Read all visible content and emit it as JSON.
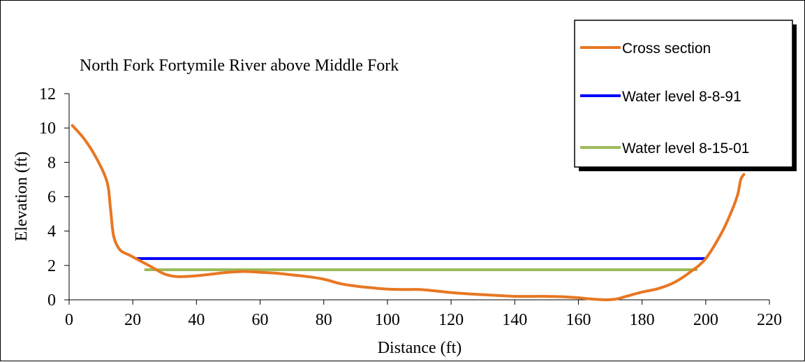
{
  "chart_data": {
    "type": "line",
    "title": "North Fork Fortymile River above Middle Fork",
    "xlabel": "Distance (ft)",
    "ylabel": "Elevation (ft)",
    "xlim": [
      0,
      220
    ],
    "ylim": [
      0,
      12
    ],
    "x_ticks": [
      0,
      20,
      40,
      60,
      80,
      100,
      120,
      140,
      160,
      180,
      200,
      220
    ],
    "y_ticks": [
      0,
      2,
      4,
      6,
      8,
      10,
      12
    ],
    "grid": false,
    "legend_position": "top-right",
    "series": [
      {
        "name": "Cross section",
        "color": "#E87722",
        "x": [
          1,
          5,
          9,
          12,
          13,
          14,
          16,
          19,
          22,
          26,
          30,
          34,
          40,
          45,
          50,
          55,
          60,
          65,
          70,
          75,
          80,
          85,
          90,
          95,
          100,
          105,
          110,
          115,
          120,
          125,
          130,
          135,
          140,
          145,
          150,
          155,
          160,
          163,
          166,
          169,
          172,
          175,
          180,
          185,
          190,
          195,
          200,
          205,
          208,
          210,
          211,
          212
        ],
        "y": [
          10.15,
          9.3,
          8.1,
          6.8,
          5.3,
          3.7,
          2.9,
          2.6,
          2.3,
          1.9,
          1.5,
          1.35,
          1.4,
          1.5,
          1.6,
          1.65,
          1.6,
          1.55,
          1.45,
          1.35,
          1.2,
          0.95,
          0.8,
          0.7,
          0.62,
          0.6,
          0.6,
          0.52,
          0.42,
          0.35,
          0.3,
          0.25,
          0.2,
          0.2,
          0.2,
          0.18,
          0.12,
          0.06,
          0.02,
          0.0,
          0.05,
          0.2,
          0.45,
          0.65,
          1.0,
          1.6,
          2.4,
          3.9,
          5.1,
          6.1,
          7.0,
          7.3
        ]
      },
      {
        "name": "Water level 8-8-91",
        "color": "#0000FF",
        "x": [
          21,
          200
        ],
        "y": [
          2.4,
          2.4
        ]
      },
      {
        "name": "Water level 8-15-01",
        "color": "#9BBB59",
        "x": [
          24,
          197
        ],
        "y": [
          1.75,
          1.75
        ]
      }
    ]
  }
}
